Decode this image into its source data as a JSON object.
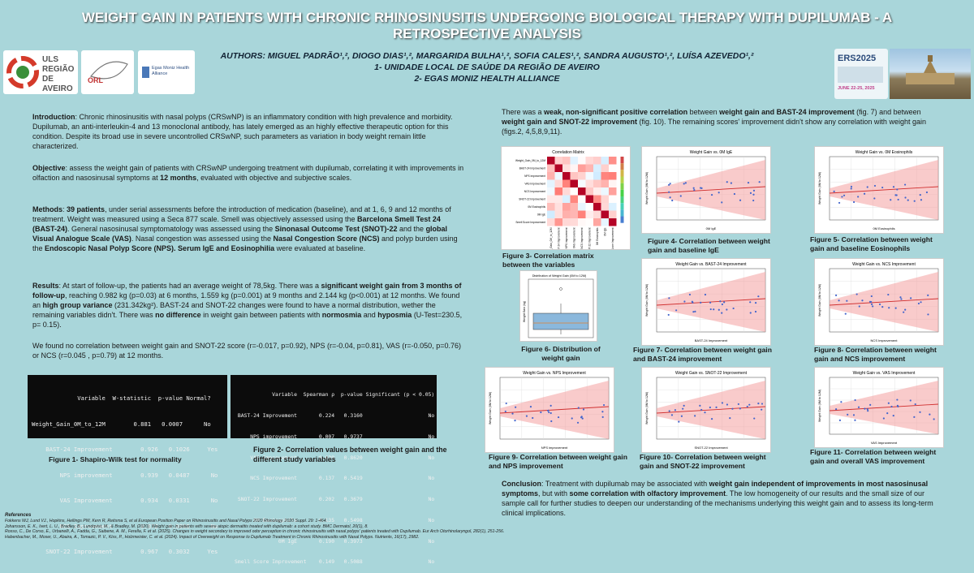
{
  "title": "WEIGHT GAIN IN PATIENTS WITH CHRONIC RHINOSINUSITIS UNDERGOING BIOLOGICAL THERAPY WITH DUPILUMAB - A RETROSPECTIVE ANALYSIS",
  "authors": {
    "line1": "AUTHORS: MIGUEL PADRÃO¹,², DIOGO DIAS¹,², MARGARIDA BULHA¹,², SOFIA CALES¹,², SANDRA AUGUSTO¹,², LUÍSA AZEVEDO¹,²",
    "aff1": "1- UNIDADE LOCAL DE SAÚDE DA REGIÃO DE AVEIRO",
    "aff2": "2- EGAS MONIZ HEALTH ALLIANCE"
  },
  "logos": {
    "uls_line1": "ULS",
    "uls_line2": "REGIÃO",
    "uls_line3": "DE AVEIRO",
    "orl": "ORL",
    "egas": "Egas Moniz Health Alliance",
    "ers_title": "ERS2025",
    "ers_dates": "JUNE 22-25, 2025"
  },
  "intro": {
    "label": "Introduction",
    "text": ": Chronic rhinosinusitis with nasal polyps (CRSwNP) is an inflammatory condition with high prevalence and morbidity. Dupilumab, an anti-interleukin-4 and 13 monoclonal antibody, has lately emerged as an highly effective therapeutic option for this condition. Despite its broad use in severe uncontrolled CRSwNP, such parameters as variation in body weight remain little characterized."
  },
  "objective": {
    "label": "Objective",
    "text1": ": assess the weight gain of patients with CRSwNP undergoing treatment with dupilumab, correlating it with improvements in olfaction and nasosinusal symptoms at ",
    "bold1": "12 months",
    "text2": ", evaluated with objective and subjective scales."
  },
  "methods": {
    "label": "Methods",
    "t1": ": ",
    "b1": "39 patients",
    "t2": ", under serial assessments before the introduction of medication (baseline), and at 1, 6, 9 and 12 months of treatment. Weight was measured using a Seca 877 scale. Smell was objectively assessed using the ",
    "b2": "Barcelona Smell Test 24 (BAST-24)",
    "t3": ". General nasosinusal symptomatology was assessed using the ",
    "b3": "Sinonasal Outcome Test (SNOT)-22",
    "t4": " and the ",
    "b4": "global Visual Analogue Scale (VAS)",
    "t5": ". Nasal congestion was assessed using the ",
    "b5": "Nasal Congestion Score (NCS)",
    "t6": " and polyp burden using the ",
    "b6": "Endoscopic Nasal Polyp Score (NPS). Serum IgE and Eosinophilia",
    "t7": " were evaluated at baseline."
  },
  "results": {
    "label": "Results",
    "t1": ": At start of follow-up, the patients had an average weight of 78,5kg. There was a ",
    "b1": "significant weight gain from 3 months of follow-up",
    "t2": ", reaching 0.982 kg (p=0.03) at 6 months, 1.559 kg (p=0.001) at 9 months and 2.144 kg (p<0.001) at 12 months. We found an ",
    "b2": "high group variance",
    "t3": " (231.342kg²). BAST-24 and SNOT-22 changes were found to have a normal distribution, wether the remaining variables didn't. There was ",
    "b3": "no difference",
    "t4": " in weight gain between patients with ",
    "b4": "normosmia",
    "t5": " and ",
    "b5": "hyposmia",
    "t6": " (U-Test=230.5, p= 0.15)."
  },
  "results2": "We found no correlation between weight gain and SNOT-22 score (r=-0.017, p=0.92), NPS (r=-0.04, p=0.81), VAS (r=-0.050, p=0.76) or NCS (r=0.045 , p=0.79) at 12 months.",
  "shapiro": {
    "header": "             Variable  W-statistic  p-value Normal?",
    "rows": [
      "Weight_Gain_0M_to_12M        0.881   0.0007      No",
      "    BAST-24 Improvement        0.926   0.1026     Yes",
      "        NPS improvement        0.939   0.0487      No",
      "        VAS Improvement        0.934   0.0331      No",
      "        NCS Improvement        0.872   0.0006      No",
      "    SNOT-22 Improvement        0.967   0.3032     Yes"
    ],
    "caption": "Figure 1- Shapiro-Wilk test for normality"
  },
  "spearman": {
    "header": "            Variable  Spearman ρ  p-value Significant (p < 0.05)",
    "rows": [
      " BAST-24 Improvement       0.224   0.3160                     No",
      "     NPS improvement       0.007   0.9737                     No",
      "     VAS Improvement       0.039   0.8620                     No",
      "     NCS Improvement       0.137   0.5419                     No",
      " SNOT-22 Improvement       0.202   0.3679                     No",
      "      0M Eosinophils       0.135   0.5498                     No",
      "              0M IgE       0.190   0.3973                     No",
      "Smell Score Improvement    0.149   0.5088                     No"
    ],
    "caption": "Figure 2- Correlation values between weight gain and the different study variables"
  },
  "right_intro": {
    "t1": "There was a ",
    "b1": "weak, non-significant positive correlation",
    "t2": " between ",
    "b2": "weight gain and BAST-24 improvement",
    "t3": " (fig. 7) and between ",
    "b3": "weight gain and SNOT-22 improvement",
    "t4": " (fig. 10). The remaining scores' improvement didn't show any correlation with weight gain (figs.2, 4,5,8,9,11)."
  },
  "figures": {
    "f3": {
      "title": "Correlation Matrix",
      "caption": "Figure 3- Correlation matrix between the variables",
      "labels": [
        "Weight_Gain_0M_to_12M",
        "BAST-24 Improvement",
        "NPS improvement",
        "VAS Improvement",
        "NCS Improvement",
        "SNOT-22 Improvement",
        "0M Eosinophils",
        "0M IgE",
        "Smell Score Improvement"
      ]
    },
    "f4": {
      "title": "Weight Gain vs. 0M IgE",
      "xlabel": "0M IgE",
      "ylabel": "Weight Gain (0M to 12M)",
      "caption": "Figure 4- Correlation between weight gain and baseline IgE"
    },
    "f5": {
      "title": "Weight Gain vs. 0M Eosinophils",
      "xlabel": "0M Eosinophils",
      "ylabel": "Weight Gain (0M to 12M)",
      "caption": "Figure 5- Correlation between weight gain and baseline Eosinophils"
    },
    "f6": {
      "title": "Distribution of Weight Gain (0M to 12M)",
      "ylabel": "Weight Gain (kg)",
      "caption": "Figure 6- Distribution of weight gain"
    },
    "f7": {
      "title": "Weight Gain vs. BAST-24 Improvement",
      "xlabel": "BAST-24 Improvement",
      "ylabel": "Weight Gain (0M to 12M)",
      "caption": "Figure 7- Correlation between weight gain and BAST-24 improvement"
    },
    "f8": {
      "title": "Weight Gain vs. NCS Improvement",
      "xlabel": "NCS Improvement",
      "ylabel": "Weight Gain (0M to 12M)",
      "caption": "Figure 8- Correlation between weight gain and NCS improvement"
    },
    "f9": {
      "title": "Weight Gain vs. NPS Improvement",
      "xlabel": "NPS improvement",
      "ylabel": "Weight Gain (0M to 12M)",
      "caption": "Figure 9- Correlation between weight gain and NPS improvement"
    },
    "f10": {
      "title": "Weight Gain vs. SNOT-22 Improvement",
      "xlabel": "SNOT-22 Improvement",
      "ylabel": "Weight Gain (0M to 12M)",
      "caption": "Figure 10- Correlation between weight gain and SNOT-22 improvement"
    },
    "f11": {
      "title": "Weight Gain vs. VAS Improvement",
      "xlabel": "VAS Improvement",
      "ylabel": "Weight Gain (0M to 12M)",
      "caption": "Figure 11- Correlation between weight gain and overall VAS improvement"
    }
  },
  "conclusion": {
    "label": "Conclusion",
    "t1": ": Treatment with dupilumab may be associated with ",
    "b1": "weight gain independent of improvements in most nasosinusal symptoms",
    "t2": ", but with ",
    "b2": "some correlation with olfactory improvement",
    "t3": ". The low homogeneity of our results and the small size of our sample call for further studies to deepen our understanding of the mechanisms underlying this weight gain and to assess its long-term clinical implications."
  },
  "references": {
    "heading": "References",
    "items": [
      "Fokkens WJ, Lund VJ., Hopkins, Hellings PW, Kern R, Reitsma S, et al European Position Paper on Rhinosinusitis and Nasal Polyps 2020 Rhinology. 2020 Suppl. 29: 1-464.",
      "Johansson, E. K., Ivert, L. U., Bradley, B., Lundqvist, M., & Bradley, M. (2020). Weight gain in patients with severe atopic dermatitis treated with dupilumab: a cohort study. BMC Dermatol, 20(1), 8.",
      "Rosso, C., De Corso, E., Urbanelli, A., Fadda, G., Saibene, A. M., Ferella, F. et al. (2025). Changes in weight secondary to improved odor perception in chronic rhinosinusitis with nasal polyps' patients treated with Dupilumab. Eur Arch Otorhinolaryngol, 282(1), 251-256.",
      "Habenbacher, M., Moser, U., Abaira, A., Tomazic, P. V., Kiss, P., Holzmeister, C. et al. (2024). Impact of Overweight on Response to Dupilumab Treatment in Chronic Rhinosinusitis with Nasal Polyps. Nutrients, 16(17), 2982."
    ]
  }
}
